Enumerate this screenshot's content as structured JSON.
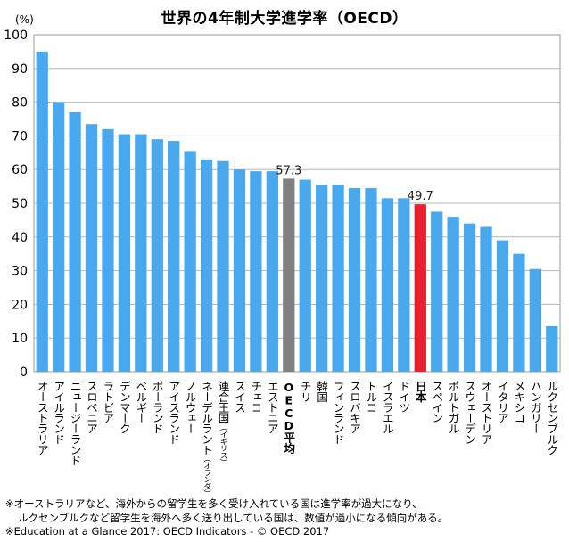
{
  "chart_data": {
    "type": "bar",
    "title": "世界の4年制大学進学率（OECD）",
    "ylabel": "(%)",
    "ylim": [
      0,
      100
    ],
    "yticks": [
      0,
      10,
      20,
      30,
      40,
      50,
      60,
      70,
      80,
      90,
      100
    ],
    "grid": true,
    "categories": [
      "オーストラリア",
      "アイルランド",
      "ニュージーランド",
      "スロベニア",
      "ラトビア",
      "デンマーク",
      "ベルギー",
      "ポーランド",
      "アイスランド",
      "ノルウェー",
      "ネーデルラント",
      "連合王国",
      "スイス",
      "チェコ",
      "エストニア",
      "OECD平均",
      "チリ",
      "韓国",
      "フィンランド",
      "スロバキア",
      "トルコ",
      "イスラエル",
      "ドイツ",
      "日本",
      "スペイン",
      "ポルトガル",
      "スウェーデン",
      "オーストリア",
      "イタリア",
      "メキシコ",
      "ハンガリー",
      "ルクセンブルク"
    ],
    "category_notes": {
      "10": "（オランダ）",
      "11": "（イギリス）"
    },
    "values": [
      95,
      80,
      77,
      73.5,
      72,
      70.5,
      70.5,
      69,
      68.5,
      65.5,
      63,
      62.5,
      60,
      59.5,
      59.5,
      57.3,
      57,
      55.5,
      55.5,
      54.5,
      54.5,
      51.5,
      51.5,
      49.7,
      47.5,
      46,
      44,
      43,
      39,
      35,
      30.5,
      13.5
    ],
    "highlight": {
      "15": "#808080",
      "23": "#e8212e"
    },
    "bar_color": "#4aa8ef",
    "data_labels": {
      "15": "57.3",
      "23": "49.7"
    }
  },
  "notes": [
    "※オーストラリアなど、海外からの留学生を多く受け入れている国は進学率が過大になり、",
    "ルクセンブルクなど留学生を海外へ多く送り出している国は、数値が過小になる傾向がある。",
    "※Education at a Glance 2017: OECD Indicators - © OECD 2017"
  ]
}
